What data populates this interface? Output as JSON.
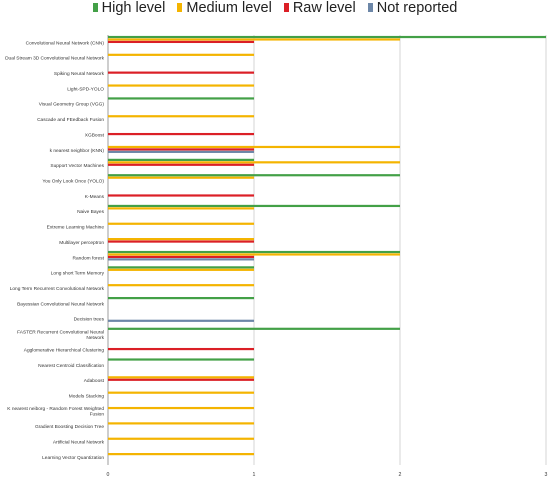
{
  "chart_data": {
    "type": "bar",
    "orientation": "horizontal",
    "title": "",
    "xlabel": "",
    "ylabel": "",
    "xlim": [
      0,
      3
    ],
    "x_ticks": [
      "0",
      "1",
      "2",
      "3"
    ],
    "grid": true,
    "legend_position": "top",
    "categories": [
      "Convolutional Neural Network (CNN)",
      "Dual Stream 3D Convolutional Neural Network",
      "Spiking Neural Network",
      "Light-SPD-YOLO",
      "Visual Geometry Group (VGG)",
      "Cascade and FEedback Fusion",
      "XGBoost",
      "k nearest neighbor (KNN)",
      "Support Vector Machines",
      "You Only Look Once (YOLO)",
      "K-Means",
      "Naive Bayes",
      "Extreme Learning Machine",
      "Multilayer perceptron",
      "Random forest",
      "Long short Term Memory",
      "Long Term Recurrent Convolutional Network",
      "Bayessian Convolutional Neural Network",
      "Decision trees",
      "FASTER Recurrent Convolutional Neural Network",
      "Agglomerative Hierarchical Clustering",
      "Nearest Centroid Classification",
      "Adaboost",
      "Models Stacking",
      "K nearest neiborg - Random Forest Weighted Fusion",
      "Gradient Boosting Decision Tree",
      "Artificial Neural Network",
      "Learning Vector Quantization"
    ],
    "series": [
      {
        "name": "High level",
        "color": "#43a047",
        "values": [
          3,
          0,
          0,
          0,
          1,
          0,
          0,
          0,
          1,
          2,
          0,
          2,
          0,
          0,
          2,
          1,
          0,
          1,
          0,
          2,
          0,
          1,
          0,
          0,
          0,
          0,
          0,
          0
        ]
      },
      {
        "name": "Medium level",
        "color": "#f4b400",
        "values": [
          2,
          1,
          0,
          1,
          0,
          1,
          0,
          2,
          2,
          1,
          0,
          1,
          1,
          1,
          2,
          1,
          1,
          0,
          0,
          0,
          0,
          0,
          1,
          1,
          1,
          1,
          1,
          1
        ]
      },
      {
        "name": "Raw level",
        "color": "#db1f26",
        "values": [
          1,
          0,
          1,
          0,
          0,
          0,
          1,
          1,
          1,
          0,
          1,
          0,
          0,
          1,
          1,
          0,
          0,
          0,
          0,
          0,
          1,
          0,
          1,
          0,
          0,
          0,
          0,
          0
        ]
      },
      {
        "name": "Not reported",
        "color": "#6d87a8",
        "values": [
          0,
          0,
          0,
          0,
          0,
          0,
          0,
          1,
          0,
          0,
          0,
          0,
          0,
          0,
          1,
          0,
          0,
          0,
          1,
          0,
          0,
          0,
          0,
          0,
          0,
          0,
          0,
          0
        ]
      }
    ]
  }
}
